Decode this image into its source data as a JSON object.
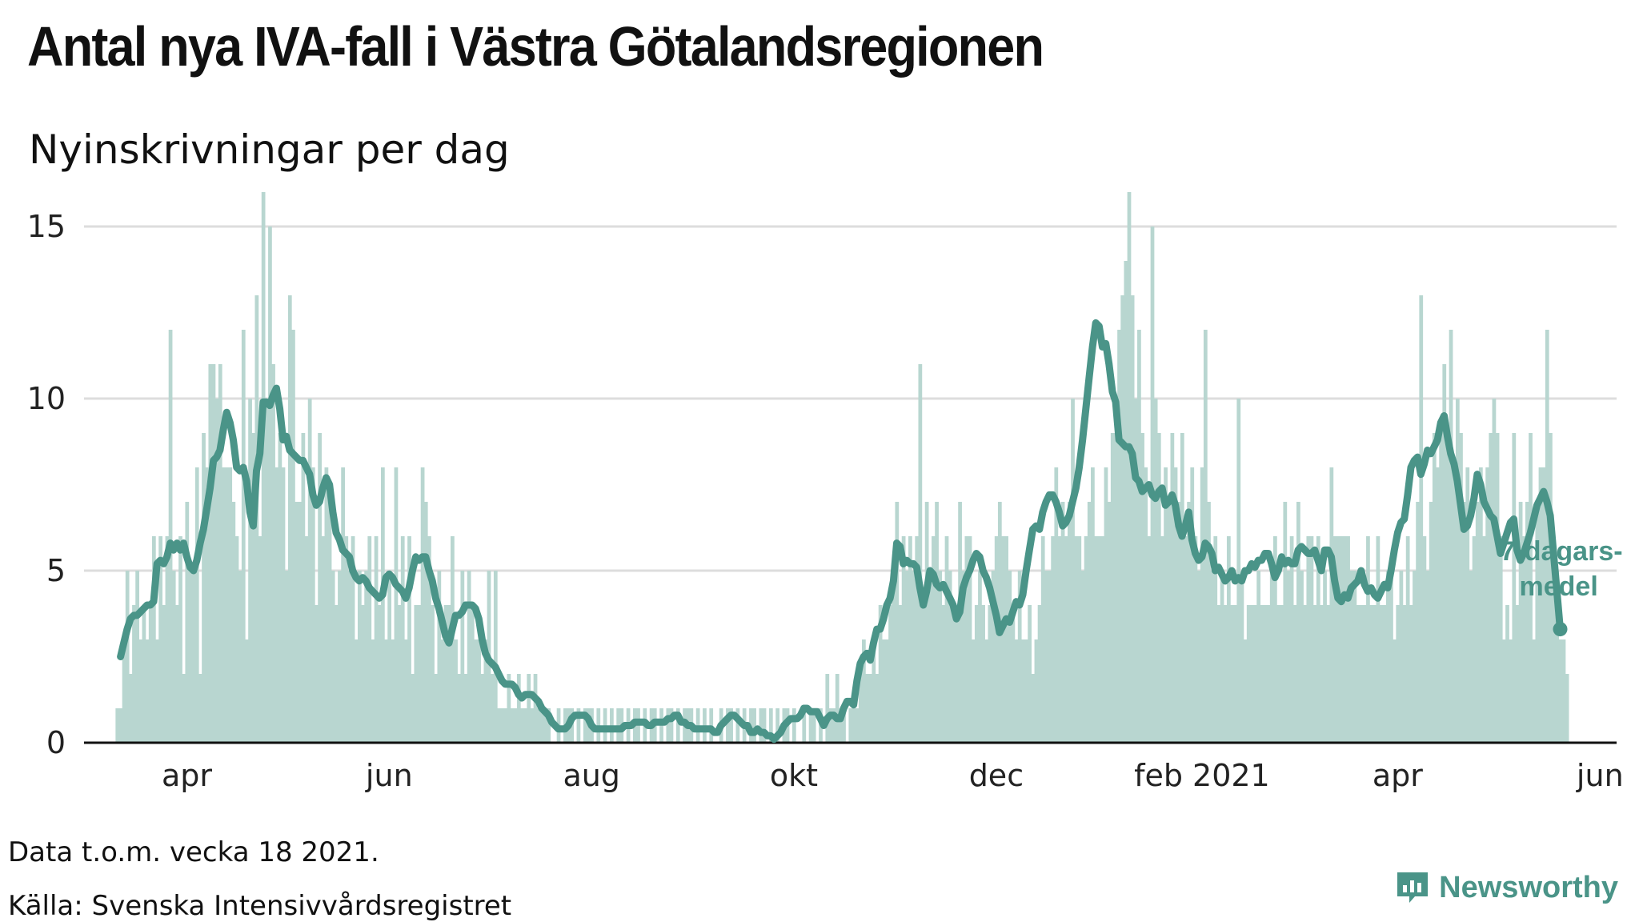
{
  "title": "Antal nya IVA-fall i Västra Götalandsregionen",
  "subtitle": "Nyinskrivningar per dag",
  "footer": {
    "note": "Data t.o.m. vecka 18 2021.",
    "source": "Källa: Svenska Intensivvårdsregistret"
  },
  "brand": {
    "name": "Newsworthy",
    "icon": "newsworthy-logo-icon"
  },
  "colors": {
    "bar": "#b8d6d0",
    "line": "#4a9488",
    "axis": "#111111",
    "grid": "#dddddd"
  },
  "chart_data": {
    "type": "bar",
    "title": "Antal nya IVA-fall i Västra Götalandsregionen",
    "ylabel": "",
    "xlabel": "",
    "ylim": [
      0,
      16
    ],
    "xlim": [
      "2020-03-01",
      "2021-06-06"
    ],
    "grid": true,
    "y_ticks": [
      {
        "value": 0,
        "label": "0"
      },
      {
        "value": 5,
        "label": "5"
      },
      {
        "value": 10,
        "label": "10"
      },
      {
        "value": 15,
        "label": "15"
      }
    ],
    "x_ticks": [
      {
        "date": "2020-04-01",
        "label": "apr"
      },
      {
        "date": "2020-06-01",
        "label": "jun"
      },
      {
        "date": "2020-08-01",
        "label": "aug"
      },
      {
        "date": "2020-10-01",
        "label": "okt"
      },
      {
        "date": "2020-12-01",
        "label": "dec"
      },
      {
        "date": "2021-02-01",
        "label": "feb 2021"
      },
      {
        "date": "2021-04-01",
        "label": "apr"
      },
      {
        "date": "2021-06-01",
        "label": "jun"
      }
    ],
    "series": [
      {
        "type": "bar",
        "start_date": "2020-03-11",
        "step_days": 1,
        "values": [
          1,
          1,
          3,
          5,
          2,
          4,
          5,
          3,
          4,
          3,
          4,
          6,
          3,
          6,
          4,
          6,
          12,
          5,
          4,
          6,
          2,
          7,
          5,
          5,
          8,
          2,
          9,
          8,
          11,
          11,
          10,
          11,
          8,
          8,
          8,
          7,
          6,
          5,
          12,
          3,
          10,
          9,
          13,
          6,
          16,
          10,
          15,
          11,
          8,
          9,
          8,
          5,
          13,
          12,
          7,
          7,
          9,
          6,
          10,
          8,
          4,
          9,
          6,
          8,
          7,
          5,
          4,
          5,
          8,
          6,
          5,
          6,
          3,
          5,
          4,
          5,
          6,
          3,
          6,
          4,
          8,
          3,
          5,
          3,
          8,
          4,
          6,
          3,
          6,
          2,
          4,
          4,
          8,
          7,
          6,
          4,
          2,
          5,
          3,
          4,
          4,
          6,
          3,
          2,
          5,
          2,
          5,
          4,
          3,
          3,
          2,
          3,
          5,
          2,
          5,
          1,
          1,
          1,
          2,
          1,
          1,
          2,
          1,
          1,
          2,
          1,
          2,
          1,
          1,
          1,
          1,
          0,
          0,
          1,
          0,
          1,
          1,
          1,
          0,
          1,
          0,
          1,
          1,
          1,
          0,
          1,
          0,
          1,
          0,
          1,
          0,
          1,
          1,
          0,
          1,
          0,
          1,
          1,
          0,
          1,
          0,
          1,
          1,
          0,
          1,
          0,
          1,
          1,
          0,
          1,
          0,
          1,
          1,
          1,
          0,
          1,
          0,
          1,
          0,
          1,
          0,
          0,
          1,
          0,
          1,
          1,
          0,
          1,
          0,
          1,
          0,
          1,
          1,
          0,
          1,
          1,
          0,
          1,
          0,
          1,
          0,
          1,
          1,
          0,
          1,
          0,
          0,
          1,
          0,
          1,
          1,
          0,
          1,
          0,
          2,
          1,
          1,
          2,
          1,
          1,
          0,
          1,
          1,
          1,
          2,
          3,
          2,
          2,
          3,
          2,
          4,
          3,
          3,
          4,
          5,
          7,
          4,
          6,
          5,
          6,
          5,
          6,
          11,
          4,
          7,
          5,
          6,
          7,
          5,
          4,
          6,
          5,
          4,
          4,
          7,
          5,
          6,
          6,
          3,
          4,
          5,
          4,
          3,
          4,
          5,
          6,
          7,
          6,
          6,
          5,
          4,
          3,
          5,
          3,
          3,
          4,
          2,
          3,
          4,
          6,
          5,
          5,
          6,
          8,
          6,
          7,
          6,
          7,
          10,
          6,
          6,
          5,
          6,
          7,
          8,
          6,
          6,
          6,
          8,
          7,
          9,
          9,
          12,
          13,
          14,
          16,
          13,
          10,
          12,
          9,
          8,
          6,
          15,
          10,
          9,
          6,
          8,
          7,
          9,
          8,
          7,
          9,
          6,
          7,
          8,
          6,
          5,
          8,
          12,
          7,
          5,
          6,
          4,
          5,
          4,
          6,
          4,
          4,
          10,
          5,
          3,
          4,
          4,
          4,
          5,
          4,
          4,
          4,
          5,
          6,
          4,
          4,
          7,
          5,
          6,
          4,
          7,
          5,
          4,
          6,
          6,
          4,
          6,
          4,
          5,
          4,
          8,
          6,
          6,
          6,
          6,
          6,
          5,
          5,
          4,
          4,
          4,
          6,
          4,
          4,
          6,
          4,
          4,
          5,
          5,
          3,
          4,
          5,
          4,
          6,
          4,
          5,
          7,
          13,
          6,
          5,
          7,
          9,
          8,
          9,
          11,
          9,
          12,
          8,
          10,
          9,
          7,
          8,
          5,
          6,
          7,
          8,
          6,
          8,
          9,
          10,
          9,
          6,
          3,
          4,
          3,
          9,
          4,
          7,
          6,
          7,
          9,
          3,
          7,
          8,
          8,
          12,
          9,
          5,
          5,
          3,
          3,
          2
        ],
        "note": "Dagliga nyinskrivningar"
      },
      {
        "type": "line",
        "name": "7-dagars-medel",
        "start_date": "2020-03-12",
        "step_days": 1,
        "values": [
          2.5,
          2.9,
          3.3,
          3.6,
          3.7,
          3.7,
          3.8,
          3.9,
          4.0,
          4.0,
          4.1,
          5.2,
          5.3,
          5.2,
          5.4,
          5.8,
          5.6,
          5.8,
          5.6,
          5.8,
          5.4,
          5.1,
          5.0,
          5.3,
          5.8,
          6.2,
          6.8,
          7.4,
          8.2,
          8.3,
          8.5,
          9.1,
          9.6,
          9.3,
          8.8,
          8.0,
          7.9,
          8.0,
          7.6,
          6.7,
          6.3,
          7.9,
          8.4,
          9.9,
          9.9,
          9.8,
          10.1,
          10.3,
          9.7,
          8.8,
          8.9,
          8.5,
          8.4,
          8.3,
          8.2,
          8.2,
          8.0,
          7.8,
          7.2,
          6.9,
          7.0,
          7.4,
          7.7,
          7.5,
          6.7,
          6.1,
          5.9,
          5.6,
          5.5,
          5.4,
          5.0,
          4.8,
          4.7,
          4.8,
          4.7,
          4.5,
          4.4,
          4.3,
          4.2,
          4.3,
          4.8,
          4.9,
          4.8,
          4.6,
          4.5,
          4.4,
          4.2,
          4.5,
          5.0,
          5.4,
          5.3,
          5.4,
          5.4,
          5.0,
          4.7,
          4.2,
          3.9,
          3.5,
          3.1,
          2.9,
          3.3,
          3.7,
          3.7,
          3.8,
          4.0,
          4.0,
          4.0,
          3.9,
          3.6,
          3.0,
          2.6,
          2.4,
          2.3,
          2.2,
          2.0,
          1.8,
          1.7,
          1.7,
          1.7,
          1.6,
          1.4,
          1.3,
          1.4,
          1.4,
          1.4,
          1.3,
          1.2,
          1.0,
          0.9,
          0.8,
          0.6,
          0.5,
          0.4,
          0.4,
          0.4,
          0.5,
          0.7,
          0.8,
          0.8,
          0.8,
          0.8,
          0.7,
          0.5,
          0.4,
          0.4,
          0.4,
          0.4,
          0.4,
          0.4,
          0.4,
          0.4,
          0.4,
          0.5,
          0.5,
          0.5,
          0.6,
          0.6,
          0.6,
          0.6,
          0.5,
          0.5,
          0.6,
          0.6,
          0.6,
          0.6,
          0.7,
          0.7,
          0.8,
          0.8,
          0.6,
          0.6,
          0.5,
          0.5,
          0.4,
          0.4,
          0.4,
          0.4,
          0.4,
          0.4,
          0.3,
          0.3,
          0.5,
          0.6,
          0.7,
          0.8,
          0.8,
          0.7,
          0.6,
          0.5,
          0.5,
          0.3,
          0.3,
          0.4,
          0.3,
          0.3,
          0.2,
          0.2,
          0.1,
          0.2,
          0.3,
          0.5,
          0.6,
          0.7,
          0.7,
          0.7,
          0.8,
          1.0,
          1.0,
          0.9,
          0.9,
          0.9,
          0.7,
          0.5,
          0.7,
          0.8,
          0.8,
          0.7,
          0.7,
          1.0,
          1.2,
          1.2,
          1.1,
          1.8,
          2.3,
          2.5,
          2.6,
          2.4,
          2.9,
          3.3,
          3.3,
          3.6,
          4.0,
          4.2,
          4.7,
          5.8,
          5.7,
          5.2,
          5.3,
          5.2,
          5.2,
          5.1,
          4.5,
          4.0,
          4.4,
          5.0,
          4.9,
          4.6,
          4.5,
          4.6,
          4.4,
          4.2,
          4.0,
          3.6,
          3.8,
          4.5,
          4.8,
          5.0,
          5.3,
          5.5,
          5.4,
          5.0,
          4.8,
          4.5,
          4.1,
          3.7,
          3.2,
          3.4,
          3.6,
          3.5,
          3.8,
          4.1,
          4.0,
          4.3,
          5.0,
          5.6,
          6.2,
          6.3,
          6.2,
          6.7,
          7.0,
          7.2,
          7.2,
          7.0,
          6.7,
          6.3,
          6.4,
          6.6,
          7.0,
          7.4,
          8.0,
          8.8,
          9.7,
          10.6,
          11.5,
          12.2,
          12.1,
          11.5,
          11.6,
          11.0,
          10.2,
          9.9,
          8.8,
          8.7,
          8.6,
          8.6,
          8.4,
          7.7,
          7.6,
          7.3,
          7.4,
          7.5,
          7.2,
          7.1,
          7.3,
          7.4,
          6.9,
          7.0,
          7.2,
          6.9,
          6.3,
          6.0,
          6.3,
          6.7,
          5.9,
          5.5,
          5.3,
          5.4,
          5.8,
          5.7,
          5.5,
          5.0,
          5.1,
          4.9,
          4.7,
          4.8,
          5.0,
          4.7,
          4.8,
          4.7,
          5.0,
          5.0,
          5.2,
          5.1,
          5.3,
          5.3,
          5.5,
          5.5,
          5.2,
          4.8,
          5.0,
          5.4,
          5.2,
          5.3,
          5.2,
          5.2,
          5.6,
          5.7,
          5.6,
          5.5,
          5.5,
          5.6,
          5.3,
          5.0,
          5.6,
          5.6,
          5.4,
          4.7,
          4.2,
          4.1,
          4.3,
          4.2,
          4.5,
          4.6,
          4.7,
          5.0,
          4.6,
          4.4,
          4.5,
          4.3,
          4.2,
          4.4,
          4.6,
          4.5,
          5.0,
          5.6,
          6.1,
          6.4,
          6.5,
          7.2,
          8.0,
          8.2,
          8.3,
          7.8,
          8.1,
          8.5,
          8.4,
          8.6,
          8.8,
          9.3,
          9.5,
          8.9,
          8.4,
          8.1,
          7.6,
          6.9,
          6.2,
          6.3,
          6.6,
          7.1,
          7.8,
          7.5,
          7.0,
          6.8,
          6.6,
          6.5,
          6.0,
          5.5,
          5.8,
          6.1,
          6.4,
          6.5,
          5.6,
          5.3,
          5.5,
          5.8,
          6.1,
          6.5,
          6.9,
          7.1,
          7.3,
          7.0,
          6.6,
          5.5,
          4.4,
          3.3
        ],
        "label": "7-dagars-medel"
      }
    ],
    "annotations": [
      {
        "text_lines": [
          "7-dagars-",
          "medel"
        ],
        "series": "7-dagars-medel",
        "at": "last"
      }
    ]
  }
}
